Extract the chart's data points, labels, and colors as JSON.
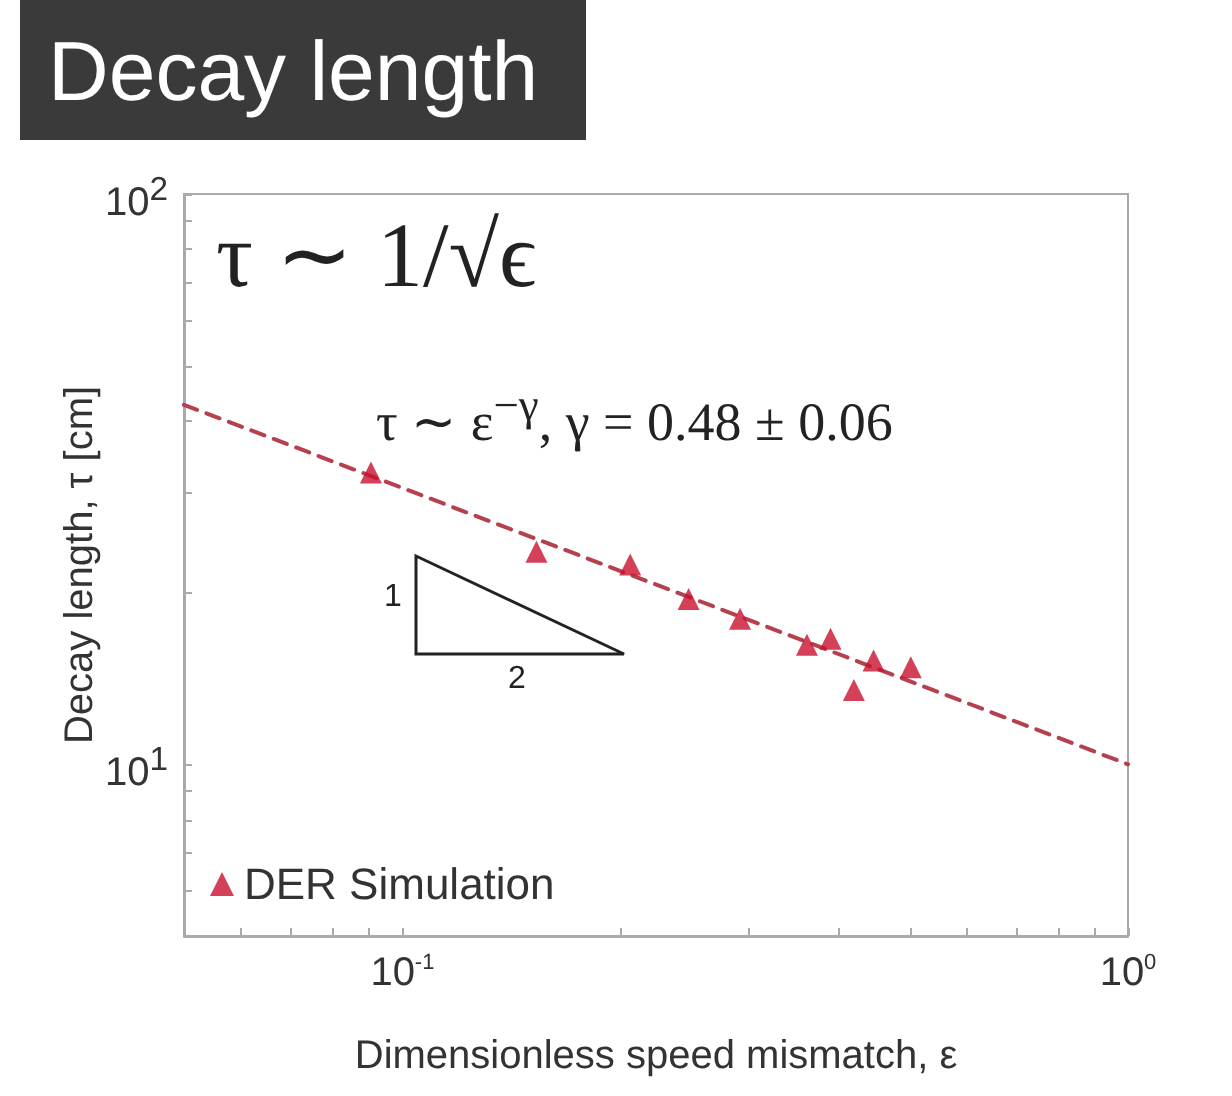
{
  "chart_data": {
    "type": "scatter",
    "title": "Decay length",
    "xlabel": "Dimensionless speed mismatch, ε",
    "ylabel": "Decay length, τ [cm]",
    "annotations": [
      "τ ∼ 1/√ϵ",
      "τ ∼ ε$^{−γ}$, γ = 0.48 ± 0.06",
      "1",
      "2"
    ],
    "log": "xy",
    "grid": false,
    "legend": "bottom left",
    "marker": "triangle",
    "xlim": [
      0.05,
      1
    ],
    "ylim": [
      5,
      100
    ],
    "xticks": [
      {
        "value": 0.05,
        "label": null
      },
      {
        "value": 0.06,
        "label": null
      },
      {
        "value": 0.07,
        "label": null
      },
      {
        "value": 0.08,
        "label": null
      },
      {
        "value": 0.09,
        "label": null
      },
      {
        "value": 0.1,
        "label": "10$^{-1}$"
      },
      {
        "value": 0.2,
        "label": null
      },
      {
        "value": 0.3,
        "label": null
      },
      {
        "value": 0.4,
        "label": null
      },
      {
        "value": 0.5,
        "label": null
      },
      {
        "value": 0.6,
        "label": null
      },
      {
        "value": 0.7,
        "label": null
      },
      {
        "value": 0.8,
        "label": null
      },
      {
        "value": 0.9,
        "label": null
      },
      {
        "value": 1,
        "label": "10$^{0}$"
      }
    ],
    "yticks": [
      {
        "value": 5,
        "label": null
      },
      {
        "value": 6,
        "label": null
      },
      {
        "value": 7,
        "label": null
      },
      {
        "value": 8,
        "label": null
      },
      {
        "value": 9,
        "label": null
      },
      {
        "value": 10,
        "label": "10$^{1}$"
      },
      {
        "value": 20,
        "label": null
      },
      {
        "value": 30,
        "label": null
      },
      {
        "value": 40,
        "label": null
      },
      {
        "value": 50,
        "label": null
      },
      {
        "value": 60,
        "label": null
      },
      {
        "value": 70,
        "label": null
      },
      {
        "value": 80,
        "label": null
      },
      {
        "value": 90,
        "label": null
      },
      {
        "value": 100,
        "label": "10$^{2}$"
      }
    ],
    "series": [
      {
        "name": "DER Simulation",
        "color": "#c8102e",
        "x": [
          0.0905,
          0.153,
          0.206,
          0.248,
          0.292,
          0.361,
          0.389,
          0.419,
          0.446,
          0.502
        ],
        "values": [
          32.5,
          23.6,
          22.4,
          19.5,
          18.0,
          16.2,
          16.6,
          13.5,
          15.2,
          14.8
        ]
      },
      {
        "type": "line",
        "color": "#b5404e",
        "line_style": "dashed",
        "marker": "none",
        "x": [
          0.05,
          1
        ],
        "values": [
          42.7,
          10
        ]
      }
    ]
  }
}
